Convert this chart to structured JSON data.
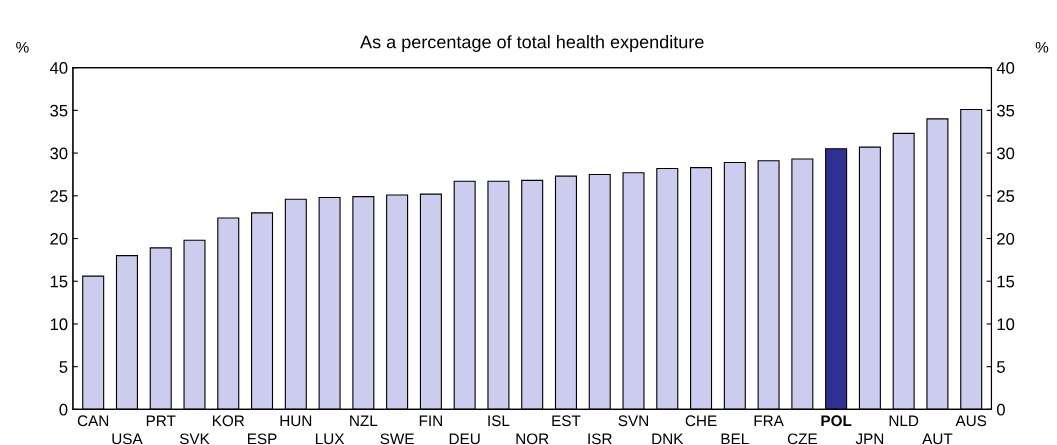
{
  "chart_data": {
    "type": "bar",
    "title": "As a percentage of total health expenditure",
    "categories": [
      "CAN",
      "USA",
      "PRT",
      "SVK",
      "KOR",
      "ESP",
      "HUN",
      "LUX",
      "NZL",
      "SWE",
      "FIN",
      "DEU",
      "ISL",
      "NOR",
      "EST",
      "ISR",
      "SVN",
      "DNK",
      "CHE",
      "BEL",
      "FRA",
      "CZE",
      "POL",
      "JPN",
      "NLD",
      "AUT",
      "AUS"
    ],
    "values": [
      15.6,
      18.0,
      18.9,
      19.8,
      22.4,
      23.0,
      24.6,
      24.8,
      24.9,
      25.1,
      25.2,
      26.7,
      26.7,
      26.8,
      27.3,
      27.5,
      27.7,
      28.2,
      28.3,
      28.9,
      29.1,
      29.3,
      30.5,
      30.7,
      32.3,
      34.0,
      35.1
    ],
    "colors": [
      "#ccccee",
      "#ccccee",
      "#ccccee",
      "#ccccee",
      "#ccccee",
      "#ccccee",
      "#ccccee",
      "#ccccee",
      "#ccccee",
      "#ccccee",
      "#ccccee",
      "#ccccee",
      "#ccccee",
      "#ccccee",
      "#ccccee",
      "#ccccee",
      "#ccccee",
      "#ccccee",
      "#ccccee",
      "#ccccee",
      "#ccccee",
      "#ccccee",
      "#2e3192",
      "#ccccee",
      "#ccccee",
      "#ccccee",
      "#ccccee"
    ],
    "ylabel": "%",
    "y2label": "%",
    "ylim": [
      0,
      40
    ],
    "yticks": [
      0,
      5,
      10,
      15,
      20,
      25,
      30,
      35,
      40
    ],
    "y2lim": [
      0,
      40
    ],
    "y2ticks": [
      0,
      5,
      10,
      15,
      20,
      25,
      30,
      35,
      40
    ],
    "grid": false,
    "legend": false
  }
}
